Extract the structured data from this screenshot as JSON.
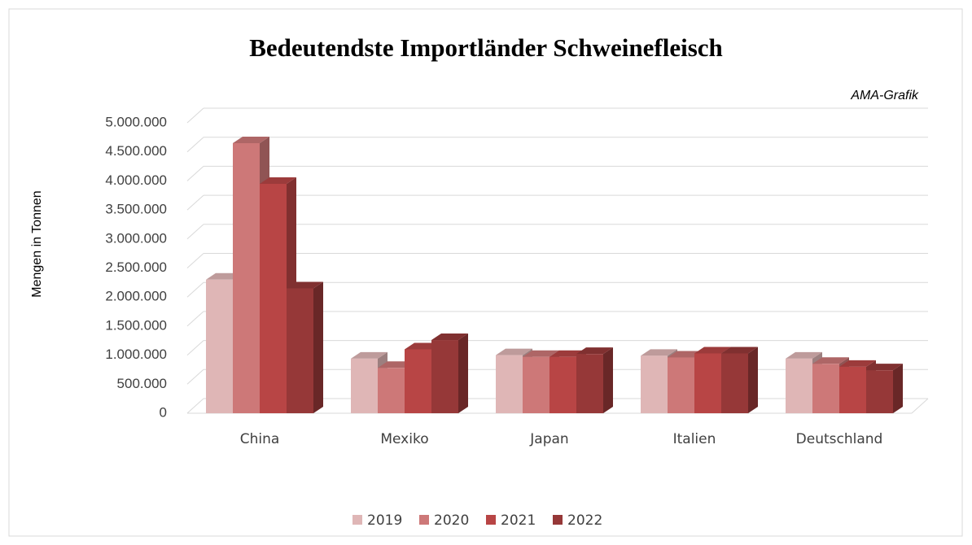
{
  "chart_data": {
    "type": "bar3d",
    "title": "Bedeutendste Importländer  Schweinefleisch",
    "annotation": "AMA-Grafik",
    "y_label": "Mengen in Tonnen",
    "categories": [
      "China",
      "Mexiko",
      "Japan",
      "Italien",
      "Deutschland"
    ],
    "series": [
      {
        "name": "2019",
        "color": "#dfb6b6",
        "values": [
          2300000,
          940000,
          1000000,
          990000,
          940000
        ]
      },
      {
        "name": "2020",
        "color": "#cd7878",
        "values": [
          4650000,
          780000,
          970000,
          960000,
          850000
        ]
      },
      {
        "name": "2021",
        "color": "#b84545",
        "values": [
          3950000,
          1100000,
          970000,
          1030000,
          800000
        ]
      },
      {
        "name": "2022",
        "color": "#963838",
        "values": [
          2150000,
          1260000,
          1020000,
          1030000,
          740000
        ]
      }
    ],
    "ylim": [
      0,
      5000000
    ],
    "yticks": [
      0,
      {
        "value": 500000,
        "label": "500.000"
      },
      {
        "value": 1000000,
        "label": "1.000.000"
      },
      {
        "value": 1500000,
        "label": "1.500.000"
      },
      {
        "value": 2000000,
        "label": "2.000.000"
      },
      {
        "value": 2500000,
        "label": "2.500.000"
      },
      {
        "value": 3000000,
        "label": "3.000.000"
      },
      {
        "value": 3500000,
        "label": "3.500.000"
      },
      {
        "value": 4000000,
        "label": "4.000.000"
      },
      {
        "value": 4500000,
        "label": "4.500.000"
      },
      {
        "value": 5000000,
        "label": "5.000.000"
      }
    ],
    "grid": true,
    "legend": "bottom"
  }
}
